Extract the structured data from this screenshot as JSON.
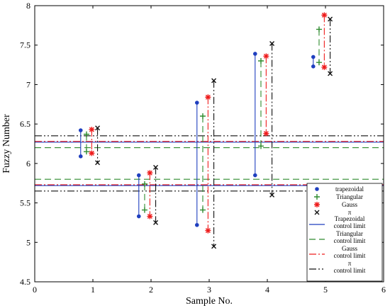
{
  "chart_data": {
    "type": "scatter",
    "xlabel": "Sample No.",
    "ylabel": "Fuzzy  Number",
    "xlim": [
      0,
      6
    ],
    "ylim": [
      4.5,
      8
    ],
    "x_ticks": [
      "0",
      "1",
      "2",
      "3",
      "4",
      "5",
      "6"
    ],
    "y_ticks": [
      "4.5",
      "5",
      "5.5",
      "6",
      "6.5",
      "7",
      "7.5",
      "8"
    ],
    "grid": false,
    "legend_position": "bottom-right",
    "series": [
      {
        "name": "trapezoidal",
        "color": "#1f3fbf",
        "marker": "dot",
        "x": [
          0.79,
          1.79,
          2.79,
          3.79,
          4.79
        ],
        "upper": [
          6.42,
          5.85,
          6.77,
          7.39,
          7.35
        ],
        "lower": [
          6.09,
          5.33,
          5.22,
          5.85,
          7.23
        ],
        "limit_name": "Trapezoidal control limit",
        "limits": [
          6.27,
          5.72
        ],
        "limit_dash": ""
      },
      {
        "name": "Triangular",
        "color": "#2e8b2e",
        "marker": "plus",
        "x": [
          0.89,
          1.89,
          2.89,
          3.89,
          4.89
        ],
        "upper": [
          6.37,
          5.74,
          6.6,
          7.3,
          7.7
        ],
        "lower": [
          6.15,
          5.41,
          5.41,
          6.22,
          7.28
        ],
        "limit_name": "Triangular control limit",
        "limits": [
          6.2,
          5.8
        ],
        "limit_dash": "9,5"
      },
      {
        "name": "Gauss",
        "color": "#ee1c1c",
        "marker": "star",
        "x": [
          0.98,
          1.98,
          2.98,
          3.98,
          4.98
        ],
        "upper": [
          6.43,
          5.88,
          6.84,
          7.36,
          7.88
        ],
        "lower": [
          6.13,
          5.33,
          5.15,
          6.38,
          7.22
        ],
        "limit_name": "Gauss control limit",
        "limits": [
          6.28,
          5.73
        ],
        "limit_dash": "10,3,2,3"
      },
      {
        "name": "π",
        "color": "#111111",
        "marker": "x",
        "x": [
          1.08,
          2.08,
          3.08,
          4.08,
          5.08
        ],
        "upper": [
          6.45,
          5.95,
          7.05,
          7.52,
          7.83
        ],
        "lower": [
          6.01,
          5.25,
          4.95,
          5.6,
          7.14
        ],
        "limit_name": "π control limit",
        "limits": [
          6.35,
          5.65
        ],
        "limit_dash": "10,3,2,3,2,3"
      }
    ],
    "legend_entries": [
      {
        "label": "trapezoidal",
        "color": "#1f3fbf",
        "marker": "dot"
      },
      {
        "label": "Triangular",
        "color": "#2e8b2e",
        "marker": "plus"
      },
      {
        "label": "Gauss",
        "color": "#ee1c1c",
        "marker": "star"
      },
      {
        "label": "π",
        "color": "#111111",
        "marker": "x"
      },
      {
        "label": "Trapezoidal",
        "label2": "control limit",
        "color": "#1f3fbf",
        "line": ""
      },
      {
        "label": "Triangular",
        "label2": "control limit",
        "color": "#2e8b2e",
        "line": "9,5"
      },
      {
        "label": "Gauss",
        "label2": "control limit",
        "color": "#ee1c1c",
        "line": "10,3,2,3"
      },
      {
        "label": "π",
        "label2": "control limit",
        "color": "#111111",
        "line": "10,3,2,3,2,3"
      }
    ]
  }
}
